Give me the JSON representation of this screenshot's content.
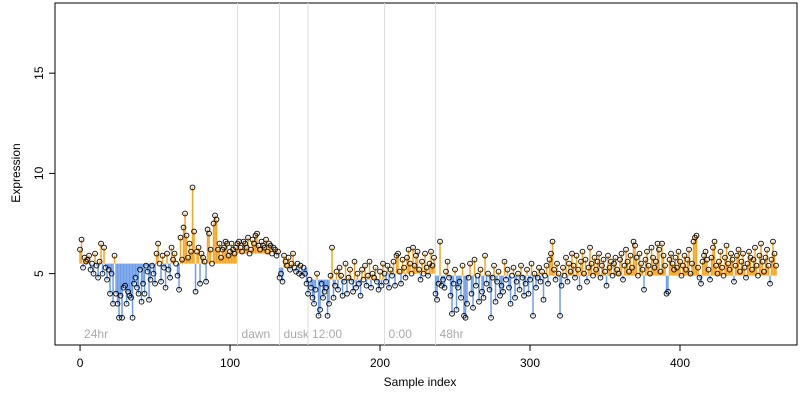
{
  "chart_data": {
    "type": "lollipop",
    "xlabel": "Sample index",
    "ylabel": "Expression",
    "xlim": [
      -16.7,
      478
    ],
    "ylim": [
      1.44,
      18.5
    ],
    "xticks": [
      0,
      100,
      200,
      300,
      400
    ],
    "yticks": [
      5,
      10,
      15
    ],
    "above_color": "#f5a623",
    "below_color": "#6f9ee8",
    "point_color": "#000000",
    "boundary_color": "#dddddd",
    "groups": [
      {
        "label": "24hr",
        "start": 0,
        "baseline": 5.5
      },
      {
        "label": "dawn",
        "start": 105,
        "baseline": 6.0
      },
      {
        "label": "dusk",
        "start": 133,
        "baseline": 5.3
      },
      {
        "label": "12:00",
        "start": 152,
        "baseline": 4.7
      },
      {
        "label": "0:00",
        "start": 203,
        "baseline": 5.0
      },
      {
        "label": "48hr",
        "start": 237,
        "baseline": 4.9
      }
    ],
    "values": [
      6.2,
      6.7,
      5.3,
      5.8,
      5.6,
      5.7,
      5.9,
      5.2,
      5.5,
      5.0,
      6.0,
      5.4,
      4.8,
      5.6,
      6.5,
      5.0,
      6.3,
      5.3,
      4.7,
      5.2,
      4.0,
      5.0,
      3.5,
      5.9,
      4.0,
      3.5,
      2.8,
      3.9,
      2.8,
      4.3,
      4.4,
      3.5,
      4.1,
      3.9,
      3.8,
      2.8,
      4.5,
      4.8,
      4.3,
      4.0,
      5.2,
      3.6,
      4.5,
      4.0,
      5.4,
      5.1,
      3.7,
      4.7,
      5.4,
      5.0,
      4.5,
      6.0,
      6.5,
      5.5,
      4.6,
      5.9,
      5.3,
      4.3,
      6.0,
      5.2,
      4.8,
      6.3,
      5.7,
      6.0,
      5.5,
      4.9,
      4.2,
      6.8,
      5.7,
      7.3,
      8.0,
      6.9,
      5.8,
      6.5,
      6.1,
      9.3,
      7.1,
      4.1,
      6.1,
      6.3,
      4.5,
      6.0,
      5.8,
      5.6,
      4.6,
      7.2,
      7.0,
      6.2,
      5.5,
      7.5,
      7.9,
      7.7,
      6.2,
      6.5,
      5.8,
      6.2,
      6.3,
      6.6,
      6.5,
      5.9,
      6.1,
      6.5,
      6.2,
      6.0,
      6.3,
      6.5,
      6.6,
      6.3,
      6.1,
      6.6,
      6.5,
      6.3,
      6.8,
      6.0,
      6.2,
      6.7,
      6.5,
      6.9,
      7.0,
      6.4,
      6.2,
      6.6,
      6.4,
      6.3,
      6.7,
      6.1,
      6.5,
      6.4,
      6.0,
      6.3,
      6.2,
      5.9,
      6.1,
      4.8,
      5.0,
      4.6,
      5.9,
      5.6,
      5.4,
      5.8,
      5.2,
      5.5,
      6.0,
      5.3,
      5.1,
      5.5,
      5.0,
      5.4,
      4.9,
      5.3,
      5.0,
      4.5,
      4.0,
      4.7,
      4.3,
      3.8,
      3.5,
      4.2,
      5.0,
      2.9,
      3.2,
      4.5,
      3.8,
      4.1,
      4.3,
      2.9,
      3.5,
      4.9,
      6.3,
      3.8,
      4.4,
      5.1,
      4.2,
      5.3,
      4.9,
      3.9,
      4.6,
      5.5,
      4.0,
      4.8,
      5.2,
      4.6,
      4.1,
      5.6,
      4.3,
      5.0,
      4.5,
      3.9,
      5.2,
      4.7,
      5.4,
      4.4,
      4.9,
      5.6,
      4.3,
      5.0,
      4.8,
      5.3,
      4.6,
      4.2,
      5.1,
      4.4,
      5.5,
      5.0,
      4.6,
      5.4,
      4.3,
      5.2,
      4.9,
      5.6,
      4.4,
      5.9,
      6.0,
      5.1,
      4.5,
      5.7,
      5.3,
      4.8,
      5.8,
      6.2,
      5.5,
      5.0,
      6.3,
      5.4,
      5.9,
      6.1,
      5.2,
      4.7,
      5.6,
      5.0,
      6.0,
      5.3,
      4.9,
      5.5,
      6.1,
      5.4,
      5.8,
      4.0,
      3.7,
      4.5,
      6.6,
      4.4,
      4.7,
      4.3,
      5.1,
      5.6,
      4.8,
      3.9,
      3.0,
      4.5,
      5.2,
      3.2,
      4.3,
      4.6,
      3.8,
      5.4,
      2.9,
      2.8,
      3.5,
      4.8,
      5.5,
      4.0,
      3.3,
      5.7,
      4.4,
      4.9,
      3.6,
      5.2,
      4.1,
      3.8,
      5.9,
      4.5,
      5.0,
      4.2,
      2.8,
      4.8,
      5.4,
      3.6,
      4.6,
      5.1,
      3.9,
      4.4,
      4.1,
      5.6,
      4.7,
      5.2,
      4.3,
      3.5,
      4.9,
      5.3,
      3.8,
      4.6,
      5.0,
      4.2,
      5.4,
      4.8,
      3.9,
      4.5,
      5.2,
      4.0,
      4.7,
      5.5,
      2.9,
      5.0,
      4.3,
      4.8,
      5.3,
      4.6,
      5.1,
      3.7,
      4.9,
      5.4,
      4.5,
      5.7,
      6.0,
      6.6,
      5.2,
      4.7,
      5.5,
      5.0,
      2.9,
      4.4,
      5.3,
      4.9,
      5.8,
      4.6,
      5.5,
      5.1,
      6.0,
      5.4,
      4.8,
      5.9,
      5.2,
      4.3,
      5.6,
      6.1,
      5.0,
      5.7,
      4.6,
      5.3,
      6.3,
      5.5,
      4.9,
      5.8,
      5.2,
      5.6,
      6.0,
      4.8,
      5.4,
      5.7,
      5.1,
      4.4,
      5.9,
      5.3,
      5.6,
      4.9,
      5.5,
      5.8,
      5.2,
      5.0,
      5.7,
      6.0,
      4.7,
      5.4,
      6.2,
      5.6,
      5.1,
      5.9,
      5.3,
      6.6,
      6.4,
      5.8,
      4.9,
      6.0,
      5.5,
      5.2,
      4.2,
      5.7,
      6.1,
      5.4,
      5.0,
      6.3,
      5.8,
      5.3,
      5.6,
      6.5,
      6.2,
      5.1,
      6.5,
      5.9,
      5.4,
      4.0,
      4.1,
      5.7,
      6.0,
      5.5,
      5.2,
      5.8,
      5.3,
      6.1,
      5.6,
      4.9,
      5.4,
      5.9,
      5.2,
      5.7,
      6.2,
      5.0,
      5.5,
      6.6,
      6.8,
      6.9,
      5.3,
      4.8,
      4.5,
      5.6,
      5.9,
      6.1,
      5.7,
      5.2,
      4.7,
      5.8,
      6.3,
      6.6,
      5.4,
      5.0,
      5.6,
      6.1,
      5.3,
      4.9,
      5.8,
      6.4,
      5.5,
      5.2,
      6.0,
      5.7,
      4.6,
      5.4,
      5.9,
      6.2,
      5.1,
      5.6,
      6.0,
      5.3,
      4.8,
      5.5,
      6.1,
      5.8,
      5.2,
      5.7,
      6.3,
      5.4,
      4.9,
      5.9,
      6.5,
      5.6,
      5.1,
      5.8,
      6.2,
      5.4,
      4.5,
      5.7,
      6.6,
      6.0,
      5.4
    ]
  }
}
